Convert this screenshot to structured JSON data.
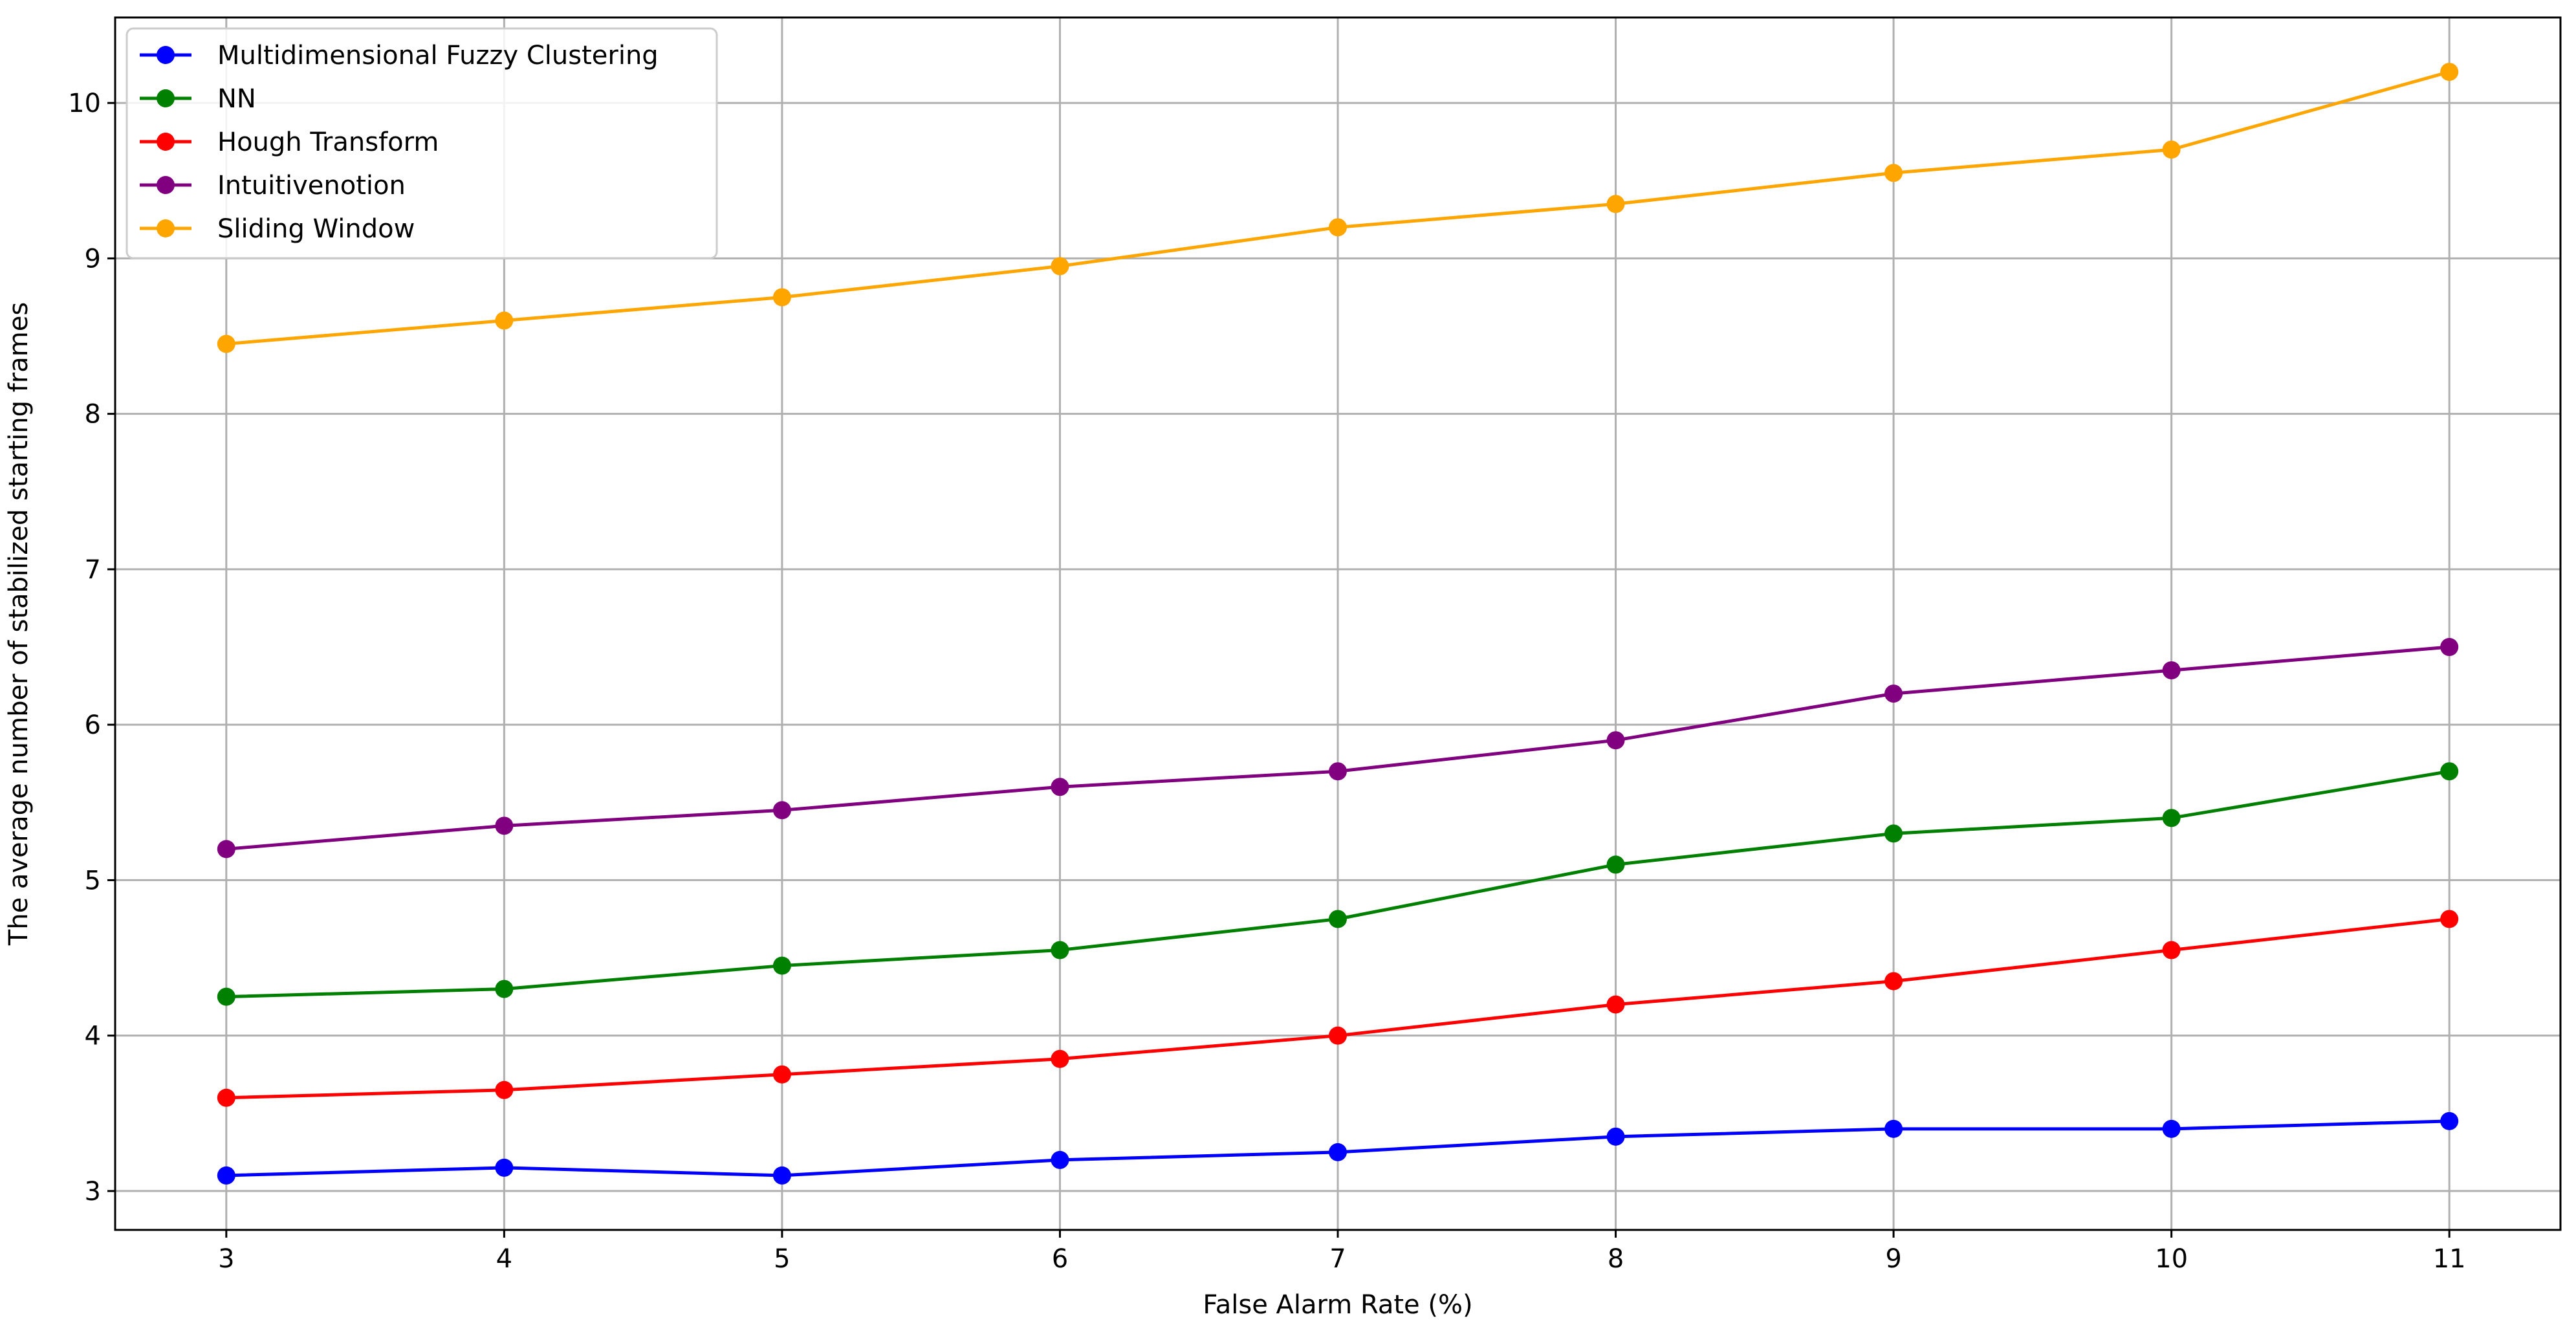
{
  "chart_data": {
    "type": "line",
    "title": "",
    "xlabel": "False Alarm Rate (%)",
    "ylabel": "The average number of stabilized starting frames",
    "x": [
      3,
      4,
      5,
      6,
      7,
      8,
      9,
      10,
      11
    ],
    "xlim": [
      2.6,
      11.4
    ],
    "ylim": [
      2.75,
      10.55
    ],
    "xticks": [
      3,
      4,
      5,
      6,
      7,
      8,
      9,
      10,
      11
    ],
    "yticks": [
      3,
      4,
      5,
      6,
      7,
      8,
      9,
      10
    ],
    "grid": true,
    "legend_position": "top-left",
    "marker": "circle",
    "series": [
      {
        "name": "Multidimensional Fuzzy Clustering",
        "color": "#0000ff",
        "values": [
          3.1,
          3.15,
          3.1,
          3.2,
          3.25,
          3.35,
          3.4,
          3.4,
          3.45
        ]
      },
      {
        "name": "NN",
        "color": "#008000",
        "values": [
          4.25,
          4.3,
          4.45,
          4.55,
          4.75,
          5.1,
          5.3,
          5.4,
          5.7
        ]
      },
      {
        "name": "Hough Transform",
        "color": "#ff0000",
        "values": [
          3.6,
          3.65,
          3.75,
          3.85,
          4.0,
          4.2,
          4.35,
          4.55,
          4.75
        ]
      },
      {
        "name": "Intuitivenotion",
        "color": "#800080",
        "values": [
          5.2,
          5.35,
          5.45,
          5.6,
          5.7,
          5.9,
          6.2,
          6.35,
          6.5
        ]
      },
      {
        "name": "Sliding Window",
        "color": "#ffa500",
        "values": [
          8.45,
          8.6,
          8.75,
          8.95,
          9.2,
          9.35,
          9.55,
          9.7,
          10.2
        ]
      }
    ]
  }
}
